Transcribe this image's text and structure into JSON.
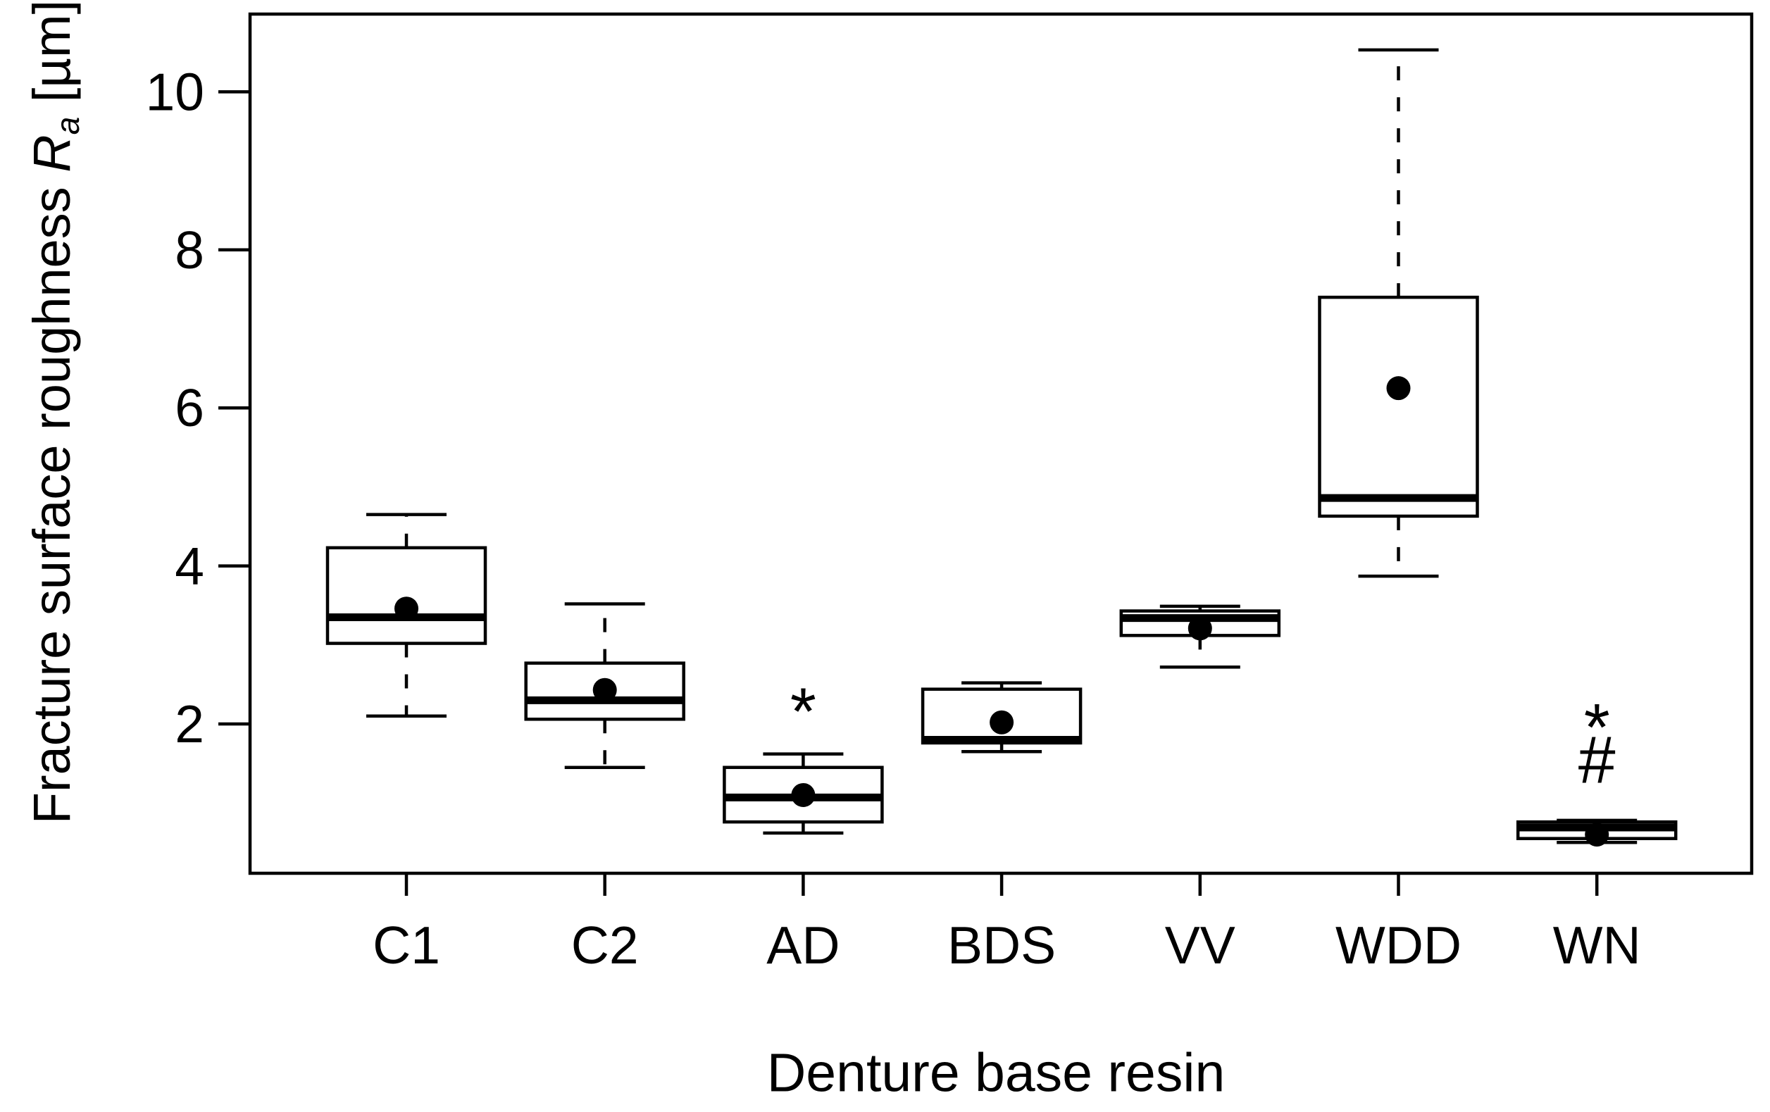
{
  "figure": {
    "background": "#ffffff",
    "line_color": "#000000"
  },
  "chart_data": {
    "type": "boxplot",
    "title": "",
    "xlabel": "Denture base resin",
    "ylabel": "Fracture surface roughness Ra [µm]",
    "ylabel_parts": {
      "prefix": "Fracture surface roughness ",
      "symbol": "R",
      "subscript": "a",
      "suffix": " [µm]"
    },
    "yticks": [
      2,
      4,
      6,
      8,
      10
    ],
    "ylim": [
      0.11,
      10.98
    ],
    "grid": "off",
    "legend": "none",
    "categories": [
      "C1",
      "C2",
      "AD",
      "BDS",
      "VV",
      "WDD",
      "WN"
    ],
    "series": [
      {
        "name": "C1",
        "min": 2.1,
        "q1": 3.02,
        "median": 3.35,
        "q3": 4.23,
        "max": 4.65,
        "mean": 3.46,
        "annotations": []
      },
      {
        "name": "C2",
        "min": 1.45,
        "q1": 2.06,
        "median": 2.3,
        "q3": 2.77,
        "max": 3.52,
        "mean": 2.43,
        "annotations": []
      },
      {
        "name": "AD",
        "min": 0.62,
        "q1": 0.76,
        "median": 1.07,
        "q3": 1.45,
        "max": 1.62,
        "mean": 1.1,
        "annotations": [
          {
            "glyph": "*",
            "value": 2.38
          }
        ]
      },
      {
        "name": "BDS",
        "min": 1.65,
        "q1": 1.76,
        "median": 1.8,
        "q3": 2.44,
        "max": 2.52,
        "mean": 2.02,
        "annotations": []
      },
      {
        "name": "VV",
        "min": 2.72,
        "q1": 3.12,
        "median": 3.34,
        "q3": 3.43,
        "max": 3.49,
        "mean": 3.21,
        "annotations": []
      },
      {
        "name": "WDD",
        "min": 3.87,
        "q1": 4.63,
        "median": 4.86,
        "q3": 7.4,
        "max": 10.53,
        "mean": 6.25,
        "annotations": []
      },
      {
        "name": "WN",
        "min": 0.5,
        "q1": 0.55,
        "median": 0.69,
        "q3": 0.76,
        "max": 0.78,
        "mean": 0.6,
        "annotations": [
          {
            "glyph": "*",
            "value": 2.18
          },
          {
            "glyph": "#",
            "value": 1.56
          }
        ]
      }
    ]
  }
}
